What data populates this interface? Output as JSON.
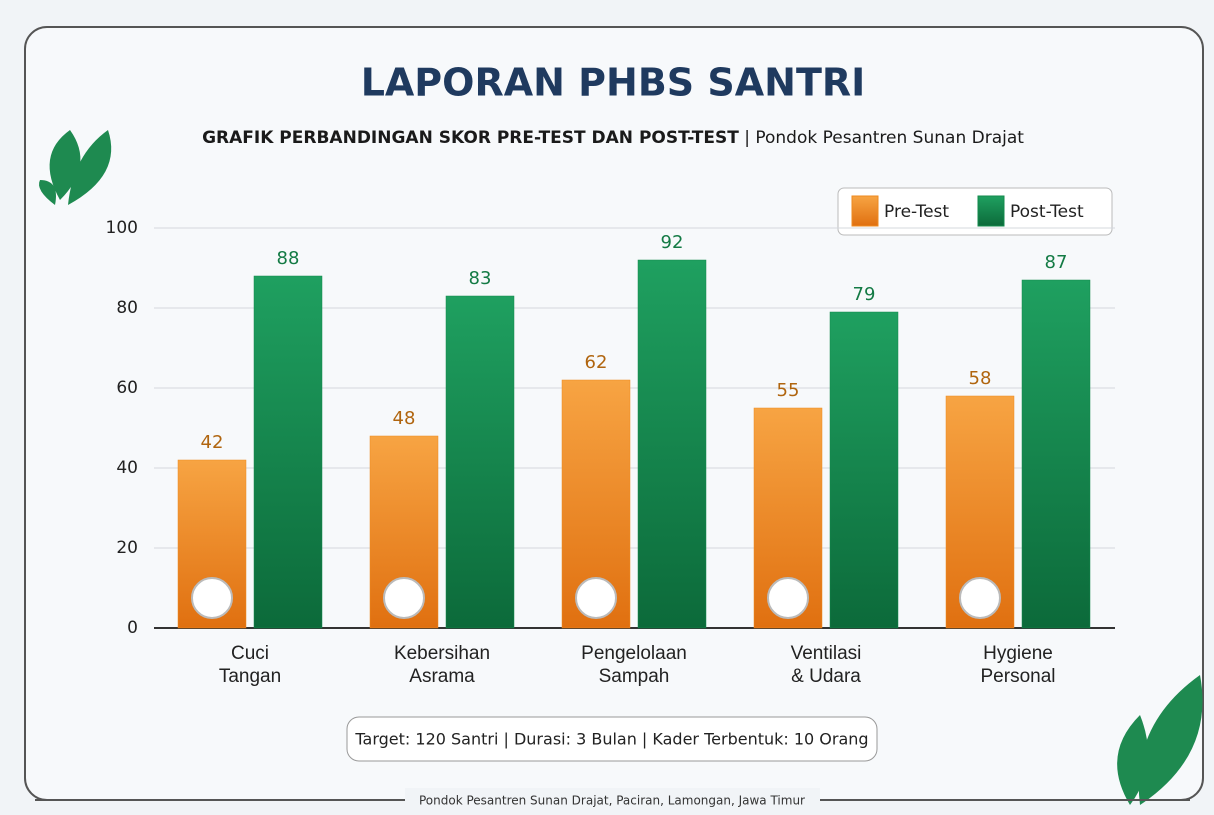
{
  "chart_data": {
    "type": "bar",
    "title": "LAPORAN PHBS SANTRI",
    "subtitle": "GRAFIK PERBANDINGAN SKOR PRE-TEST DAN POST-TEST",
    "subtitle_note": "| Pondok Pesantren Sunan Drajat",
    "categories": [
      "Cuci\nTangan",
      "Kebersihan\nAsrama",
      "Pengelolaan\nSampah",
      "Ventilasi\n& Udara",
      "Hygiene\nPersonal"
    ],
    "series": [
      {
        "name": "Pre-Test",
        "color": "#ee8a1f",
        "values": [
          42,
          48,
          62,
          55,
          58
        ]
      },
      {
        "name": "Post-Test",
        "color": "#138a4c",
        "values": [
          88,
          83,
          92,
          79,
          87
        ]
      }
    ],
    "ylim": [
      0,
      100
    ],
    "yticks": [
      0,
      20,
      40,
      60,
      80,
      100
    ],
    "grid": true,
    "legend": "top-right",
    "info": "Target: 120 Santri | Durasi: 3 Bulan | Kader Terbentuk: 10 Orang",
    "footer": "Pondok Pesantren Sunan Drajat, Paciran, Lamongan, Jawa Timur"
  }
}
